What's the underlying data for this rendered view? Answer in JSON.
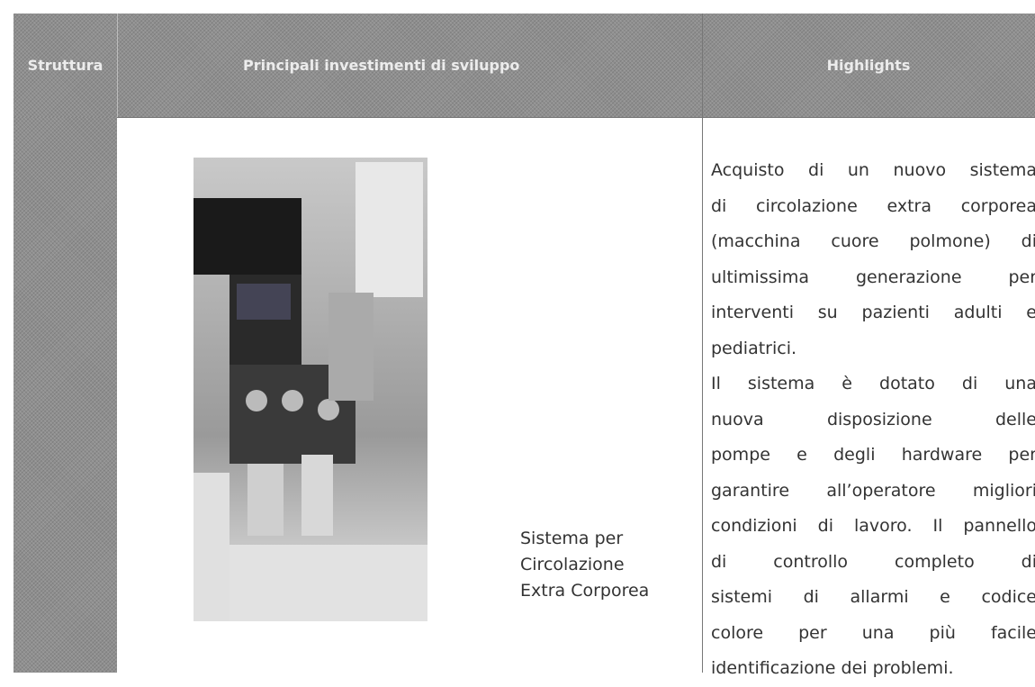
{
  "header": {
    "structure": "Struttura",
    "investments": "Principali investimenti di sviluppo",
    "highlights": "Highlights"
  },
  "rows": [
    {
      "product": [
        "Sistema per",
        "Circolazione",
        "Extra Corporea"
      ],
      "highlights": [
        "Acquisto di un nuovo sistema",
        "di circolazione extra corporea",
        "(macchina cuore polmone) di",
        "ultimissima generazione per",
        "interventi su pazienti adulti e",
        "pediatrici.",
        "Il sistema è dotato di una",
        "nuova disposizione delle",
        "pompe e degli hardware per",
        "garantire all’operatore migliori",
        "condizioni di lavoro. Il pannello",
        "di controllo completo di",
        "sistemi di allarmi e codice",
        "colore per una più facile",
        "identificazione dei problemi."
      ]
    }
  ]
}
